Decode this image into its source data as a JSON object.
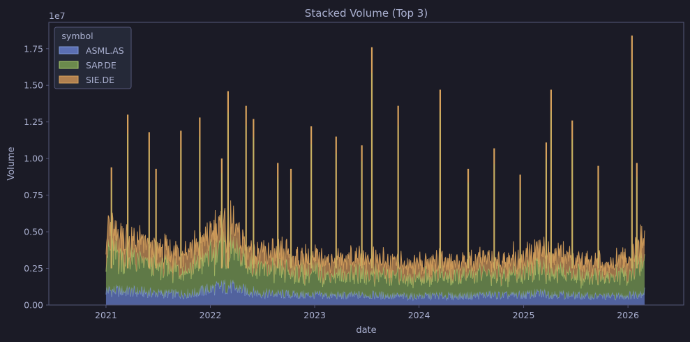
{
  "theme": {
    "background": "#1b1b26",
    "plot_background": "#1b1b26",
    "text_color": "#aab0d0",
    "axis_color": "#55587a",
    "legend_background": "#262a3a"
  },
  "chart_data": {
    "type": "area",
    "stacked": true,
    "title": "Stacked Volume (Top 3)",
    "xlabel": "date",
    "ylabel": "Volume",
    "y_multiplier_label": "1e7",
    "x_ticks": [
      {
        "value": "2021-01-01",
        "label": "2021"
      },
      {
        "value": "2022-01-01",
        "label": "2022"
      },
      {
        "value": "2023-01-01",
        "label": "2023"
      },
      {
        "value": "2024-01-01",
        "label": "2024"
      },
      {
        "value": "2025-01-01",
        "label": "2025"
      },
      {
        "value": "2026-01-01",
        "label": "2026"
      }
    ],
    "y_ticks": [
      {
        "value": 0,
        "label": "0.00"
      },
      {
        "value": 2500000,
        "label": "0.25"
      },
      {
        "value": 5000000,
        "label": "0.50"
      },
      {
        "value": 7500000,
        "label": "0.75"
      },
      {
        "value": 10000000,
        "label": "1.00"
      },
      {
        "value": 12500000,
        "label": "1.25"
      },
      {
        "value": 15000000,
        "label": "1.50"
      },
      {
        "value": 17500000,
        "label": "1.75"
      }
    ],
    "xlim": [
      "2020-06-15",
      "2026-07-15"
    ],
    "ylim": [
      0,
      19300000
    ],
    "grid": false,
    "legend": {
      "title": "symbol",
      "position": "top-left"
    },
    "series": [
      {
        "name": "ASML.AS",
        "color": "#5b6fb3",
        "line_color": "#7f99d8",
        "x": [
          "2021-01-01",
          "2021-03-01",
          "2021-05-01",
          "2021-07-01",
          "2021-09-01",
          "2021-11-01",
          "2022-01-01",
          "2022-03-01",
          "2022-05-01",
          "2022-07-01",
          "2022-09-01",
          "2022-11-01",
          "2023-01-01",
          "2023-03-01",
          "2023-05-01",
          "2023-07-01",
          "2023-09-01",
          "2023-11-01",
          "2024-01-01",
          "2024-03-01",
          "2024-05-01",
          "2024-07-01",
          "2024-09-01",
          "2024-11-01",
          "2025-01-01",
          "2025-03-01",
          "2025-05-01",
          "2025-07-01",
          "2025-09-01",
          "2025-11-01",
          "2026-01-01",
          "2026-03-01"
        ],
        "values": [
          1000000,
          950000,
          900000,
          800000,
          750000,
          800000,
          1100000,
          1300000,
          1000000,
          800000,
          750000,
          700000,
          700000,
          650000,
          650000,
          700000,
          650000,
          600000,
          600000,
          650000,
          600000,
          650000,
          700000,
          650000,
          700000,
          800000,
          750000,
          650000,
          600000,
          600000,
          650000,
          900000
        ]
      },
      {
        "name": "SAP.DE",
        "color": "#6b8a4d",
        "line_color": "#a8c96a",
        "x": [
          "2021-01-01",
          "2021-03-01",
          "2021-05-01",
          "2021-07-01",
          "2021-09-01",
          "2021-11-01",
          "2022-01-01",
          "2022-03-01",
          "2022-05-01",
          "2022-07-01",
          "2022-09-01",
          "2022-11-01",
          "2023-01-01",
          "2023-03-01",
          "2023-05-01",
          "2023-07-01",
          "2023-09-01",
          "2023-11-01",
          "2024-01-01",
          "2024-03-01",
          "2024-05-01",
          "2024-07-01",
          "2024-09-01",
          "2024-11-01",
          "2025-01-01",
          "2025-03-01",
          "2025-05-01",
          "2025-07-01",
          "2025-09-01",
          "2025-11-01",
          "2026-01-01",
          "2026-03-01"
        ],
        "values": [
          2700000,
          2300000,
          2000000,
          1800000,
          1700000,
          1800000,
          2300000,
          2600000,
          2000000,
          1700000,
          1600000,
          1500000,
          1500000,
          1400000,
          1400000,
          1500000,
          1400000,
          1300000,
          1300000,
          1400000,
          1300000,
          1400000,
          1500000,
          1400000,
          1500000,
          1700000,
          1600000,
          1400000,
          1300000,
          1300000,
          1500000,
          2200000
        ]
      },
      {
        "name": "SIE.DE",
        "color": "#b08050",
        "line_color": "#d8a25c",
        "x": [
          "2021-01-01",
          "2021-03-01",
          "2021-05-01",
          "2021-07-01",
          "2021-09-01",
          "2021-11-01",
          "2022-01-01",
          "2022-03-01",
          "2022-05-01",
          "2022-07-01",
          "2022-09-01",
          "2022-11-01",
          "2023-01-01",
          "2023-03-01",
          "2023-05-01",
          "2023-07-01",
          "2023-09-01",
          "2023-11-01",
          "2024-01-01",
          "2024-03-01",
          "2024-05-01",
          "2024-07-01",
          "2024-09-01",
          "2024-11-01",
          "2025-01-01",
          "2025-03-01",
          "2025-05-01",
          "2025-07-01",
          "2025-09-01",
          "2025-11-01",
          "2026-01-01",
          "2026-03-01"
        ],
        "values": [
          1500000,
          1300000,
          1200000,
          1100000,
          1000000,
          1100000,
          1400000,
          1600000,
          1200000,
          1100000,
          1000000,
          1000000,
          950000,
          950000,
          1000000,
          1000000,
          950000,
          900000,
          900000,
          950000,
          900000,
          950000,
          1000000,
          950000,
          1000000,
          1100000,
          1050000,
          950000,
          900000,
          900000,
          1000000,
          1500000
        ]
      }
    ],
    "total_spikes": [
      {
        "x": "2021-01-20",
        "total": 9400000
      },
      {
        "x": "2021-03-18",
        "total": 13000000
      },
      {
        "x": "2021-06-01",
        "total": 11800000
      },
      {
        "x": "2021-06-25",
        "total": 9300000
      },
      {
        "x": "2021-09-20",
        "total": 11900000
      },
      {
        "x": "2021-11-25",
        "total": 12800000
      },
      {
        "x": "2022-02-10",
        "total": 10000000
      },
      {
        "x": "2022-03-04",
        "total": 14600000
      },
      {
        "x": "2022-05-06",
        "total": 13600000
      },
      {
        "x": "2022-06-01",
        "total": 12700000
      },
      {
        "x": "2022-08-25",
        "total": 9700000
      },
      {
        "x": "2022-10-10",
        "total": 9300000
      },
      {
        "x": "2022-12-20",
        "total": 12200000
      },
      {
        "x": "2023-03-17",
        "total": 11500000
      },
      {
        "x": "2023-06-15",
        "total": 10900000
      },
      {
        "x": "2023-07-20",
        "total": 17600000
      },
      {
        "x": "2023-10-20",
        "total": 13600000
      },
      {
        "x": "2024-03-15",
        "total": 14700000
      },
      {
        "x": "2024-06-21",
        "total": 9300000
      },
      {
        "x": "2024-09-20",
        "total": 10700000
      },
      {
        "x": "2024-12-20",
        "total": 8900000
      },
      {
        "x": "2025-03-21",
        "total": 11100000
      },
      {
        "x": "2025-04-07",
        "total": 14700000
      },
      {
        "x": "2025-06-20",
        "total": 12600000
      },
      {
        "x": "2025-09-19",
        "total": 9500000
      },
      {
        "x": "2026-01-15",
        "total": 18400000
      },
      {
        "x": "2026-02-01",
        "total": 9700000
      }
    ]
  }
}
